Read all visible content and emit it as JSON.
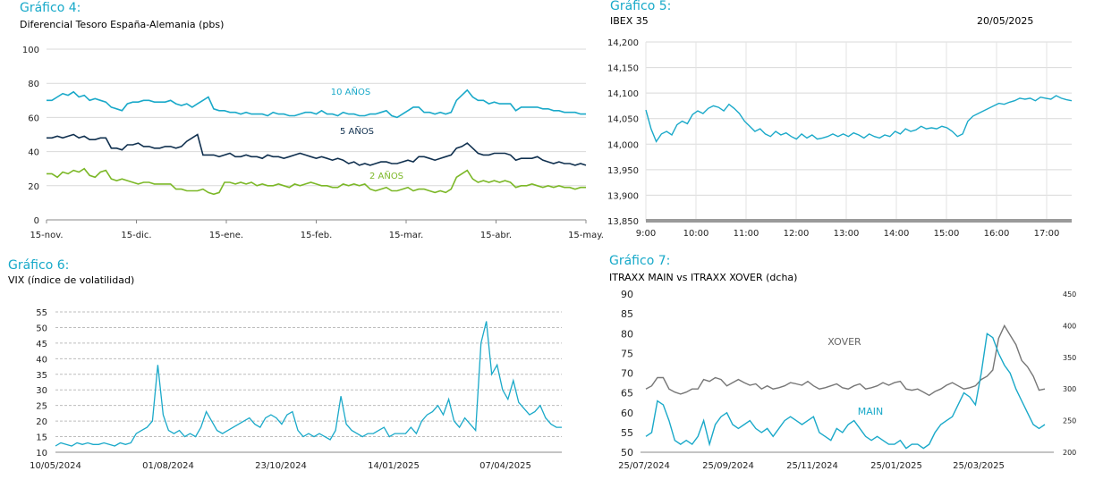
{
  "charts": [
    {
      "title": "Gráfico 4:",
      "subtitle": "Diferencial Tesoro España-Alemania (pbs)",
      "chart_data": {
        "type": "line",
        "x_ticks": [
          "15-nov.",
          "15-dic.",
          "15-ene.",
          "15-feb.",
          "15-mar.",
          "15-abr.",
          "15-may."
        ],
        "y_ticks": [
          "0",
          "20",
          "40",
          "60",
          "80",
          "100"
        ],
        "ylim": [
          0,
          100
        ],
        "grid": true,
        "series": [
          {
            "name": "10 AÑOS",
            "color": "#1aa9c9",
            "values": [
              70,
              70,
              72,
              74,
              73,
              75,
              72,
              73,
              70,
              71,
              70,
              69,
              66,
              65,
              64,
              68,
              69,
              69,
              70,
              70,
              69,
              69,
              69,
              70,
              68,
              67,
              68,
              66,
              68,
              70,
              72,
              65,
              64,
              64,
              63,
              63,
              62,
              63,
              62,
              62,
              62,
              61,
              63,
              62,
              62,
              61,
              61,
              62,
              63,
              63,
              62,
              64,
              62,
              62,
              61,
              63,
              62,
              62,
              61,
              61,
              62,
              62,
              63,
              64,
              61,
              60,
              62,
              64,
              66,
              66,
              63,
              63,
              62,
              63,
              62,
              63,
              70,
              73,
              76,
              72,
              70,
              70,
              68,
              69,
              68,
              68,
              68,
              64,
              66,
              66,
              66,
              66,
              65,
              65,
              64,
              64,
              63,
              63,
              63,
              62,
              62
            ]
          },
          {
            "name": "5 AÑOS",
            "color": "#10304f",
            "values": [
              48,
              48,
              49,
              48,
              49,
              50,
              48,
              49,
              47,
              47,
              48,
              48,
              42,
              42,
              41,
              44,
              44,
              45,
              43,
              43,
              42,
              42,
              43,
              43,
              42,
              43,
              46,
              48,
              50,
              38,
              38,
              38,
              37,
              38,
              39,
              37,
              37,
              38,
              37,
              37,
              36,
              38,
              37,
              37,
              36,
              37,
              38,
              39,
              38,
              37,
              36,
              37,
              36,
              35,
              36,
              35,
              33,
              34,
              32,
              33,
              32,
              33,
              34,
              34,
              33,
              33,
              34,
              35,
              34,
              37,
              37,
              36,
              35,
              36,
              37,
              38,
              42,
              43,
              45,
              42,
              39,
              38,
              38,
              39,
              39,
              39,
              38,
              35,
              36,
              36,
              36,
              37,
              35,
              34,
              33,
              34,
              33,
              33,
              32,
              33,
              32
            ]
          },
          {
            "name": "2 AÑOS",
            "color": "#7cb828",
            "values": [
              27,
              27,
              25,
              28,
              27,
              29,
              28,
              30,
              26,
              25,
              28,
              29,
              24,
              23,
              24,
              23,
              22,
              21,
              22,
              22,
              21,
              21,
              21,
              21,
              18,
              18,
              17,
              17,
              17,
              18,
              16,
              15,
              16,
              22,
              22,
              21,
              22,
              21,
              22,
              20,
              21,
              20,
              20,
              21,
              20,
              19,
              21,
              20,
              21,
              22,
              21,
              20,
              20,
              19,
              19,
              21,
              20,
              21,
              20,
              21,
              18,
              17,
              18,
              19,
              17,
              17,
              18,
              19,
              17,
              18,
              18,
              17,
              16,
              17,
              16,
              18,
              25,
              27,
              29,
              24,
              22,
              23,
              22,
              23,
              22,
              23,
              22,
              19,
              20,
              20,
              21,
              20,
              19,
              20,
              19,
              20,
              19,
              19,
              18,
              19,
              19
            ]
          }
        ]
      }
    },
    {
      "title": "Gráfico 5:",
      "subtitle": "IBEX 35",
      "date": "20/05/2025",
      "chart_data": {
        "type": "line",
        "x_ticks": [
          "9:00",
          "10:00",
          "11:00",
          "12:00",
          "13:00",
          "14:00",
          "15:00",
          "16:00",
          "17:00"
        ],
        "y_ticks": [
          "13,850",
          "13,900",
          "13,950",
          "14,000",
          "14,050",
          "14,100",
          "14,150",
          "14,200"
        ],
        "ylim": [
          13850,
          14200
        ],
        "grid": true,
        "series": [
          {
            "name": "",
            "color": "#1aa9c9",
            "values": [
              14067,
              14030,
              14005,
              14020,
              14025,
              14018,
              14038,
              14045,
              14040,
              14058,
              14065,
              14060,
              14070,
              14075,
              14072,
              14065,
              14078,
              14070,
              14060,
              14045,
              14035,
              14025,
              14030,
              14020,
              14015,
              14025,
              14018,
              14022,
              14015,
              14010,
              14020,
              14012,
              14018,
              14010,
              14012,
              14015,
              14020,
              14015,
              14020,
              14015,
              14022,
              14018,
              14012,
              14020,
              14015,
              14012,
              14018,
              14015,
              14025,
              14020,
              14030,
              14025,
              14028,
              14035,
              14030,
              14032,
              14030,
              14035,
              14032,
              14025,
              14015,
              14020,
              14045,
              14055,
              14060,
              14065,
              14070,
              14075,
              14080,
              14078,
              14082,
              14085,
              14090,
              14088,
              14090,
              14085,
              14092,
              14090,
              14088,
              14095,
              14090,
              14087,
              14085
            ]
          }
        ]
      }
    },
    {
      "title": "Gráfico 6:",
      "subtitle": "VIX (índice de volatilidad)",
      "chart_data": {
        "type": "line",
        "x_ticks": [
          "10/05/2024",
          "01/08/2024",
          "23/10/2024",
          "14/01/2025",
          "07/04/2025"
        ],
        "y_ticks": [
          "10",
          "15",
          "20",
          "25",
          "30",
          "35",
          "40",
          "45",
          "50",
          "55"
        ],
        "ylim": [
          10,
          55
        ],
        "grid": true,
        "series": [
          {
            "name": "",
            "color": "#1aa9c9",
            "values": [
              12,
              13,
              12.5,
              12,
              13,
              12.5,
              13,
              12.5,
              12.5,
              13,
              12.5,
              12,
              13,
              12.5,
              13,
              16,
              17,
              18,
              20,
              38,
              22,
              17,
              16,
              17,
              15,
              16,
              15,
              18,
              23,
              20,
              17,
              16,
              17,
              18,
              19,
              20,
              21,
              19,
              18,
              21,
              22,
              21,
              19,
              22,
              23,
              17,
              15,
              16,
              15,
              16,
              15,
              14,
              17,
              28,
              19,
              17,
              16,
              15,
              16,
              16,
              17,
              18,
              15,
              16,
              16,
              16,
              18,
              16,
              20,
              22,
              23,
              25,
              22,
              27,
              20,
              18,
              21,
              19,
              17,
              45,
              52,
              35,
              38,
              30,
              27,
              33,
              26,
              24,
              22,
              23,
              25,
              21,
              19,
              18,
              18
            ]
          }
        ]
      }
    },
    {
      "title": "Gráfico 7:",
      "subtitle": "ITRAXX MAIN vs ITRAXX XOVER (dcha)",
      "chart_data": {
        "type": "line",
        "x_ticks": [
          "25/07/2024",
          "25/09/2024",
          "25/11/2024",
          "25/01/2025",
          "25/03/2025"
        ],
        "y_ticks": [
          "50",
          "55",
          "60",
          "65",
          "70",
          "75",
          "80",
          "85",
          "90"
        ],
        "y2_ticks": [
          "200",
          "250",
          "300",
          "350",
          "400",
          "450"
        ],
        "ylim": [
          50,
          90
        ],
        "y2lim": [
          200,
          450
        ],
        "grid": false,
        "series": [
          {
            "name": "XOVER",
            "color": "#777777",
            "axis": "right",
            "values": [
              300,
              305,
              318,
              318,
              300,
              295,
              292,
              295,
              300,
              300,
              315,
              312,
              318,
              315,
              305,
              310,
              315,
              310,
              306,
              308,
              300,
              305,
              300,
              302,
              305,
              310,
              308,
              306,
              312,
              305,
              300,
              302,
              305,
              308,
              302,
              300,
              305,
              308,
              300,
              302,
              305,
              310,
              306,
              310,
              312,
              300,
              298,
              300,
              295,
              290,
              296,
              300,
              306,
              310,
              305,
              300,
              302,
              305,
              315,
              320,
              330,
              380,
              400,
              385,
              370,
              345,
              335,
              320,
              298,
              300
            ]
          },
          {
            "name": "MAIN",
            "color": "#1aa9c9",
            "axis": "left",
            "values": [
              54,
              55,
              63,
              62,
              58,
              53,
              52,
              53,
              52,
              54,
              58,
              52,
              57,
              59,
              60,
              57,
              56,
              57,
              58,
              56,
              55,
              56,
              54,
              56,
              58,
              59,
              58,
              57,
              58,
              59,
              55,
              54,
              53,
              56,
              55,
              57,
              58,
              56,
              54,
              53,
              54,
              53,
              52,
              52,
              53,
              51,
              52,
              52,
              51,
              52,
              55,
              57,
              58,
              59,
              62,
              65,
              64,
              62,
              70,
              80,
              79,
              75,
              72,
              70,
              66,
              63,
              60,
              57,
              56,
              57
            ]
          }
        ]
      }
    }
  ]
}
